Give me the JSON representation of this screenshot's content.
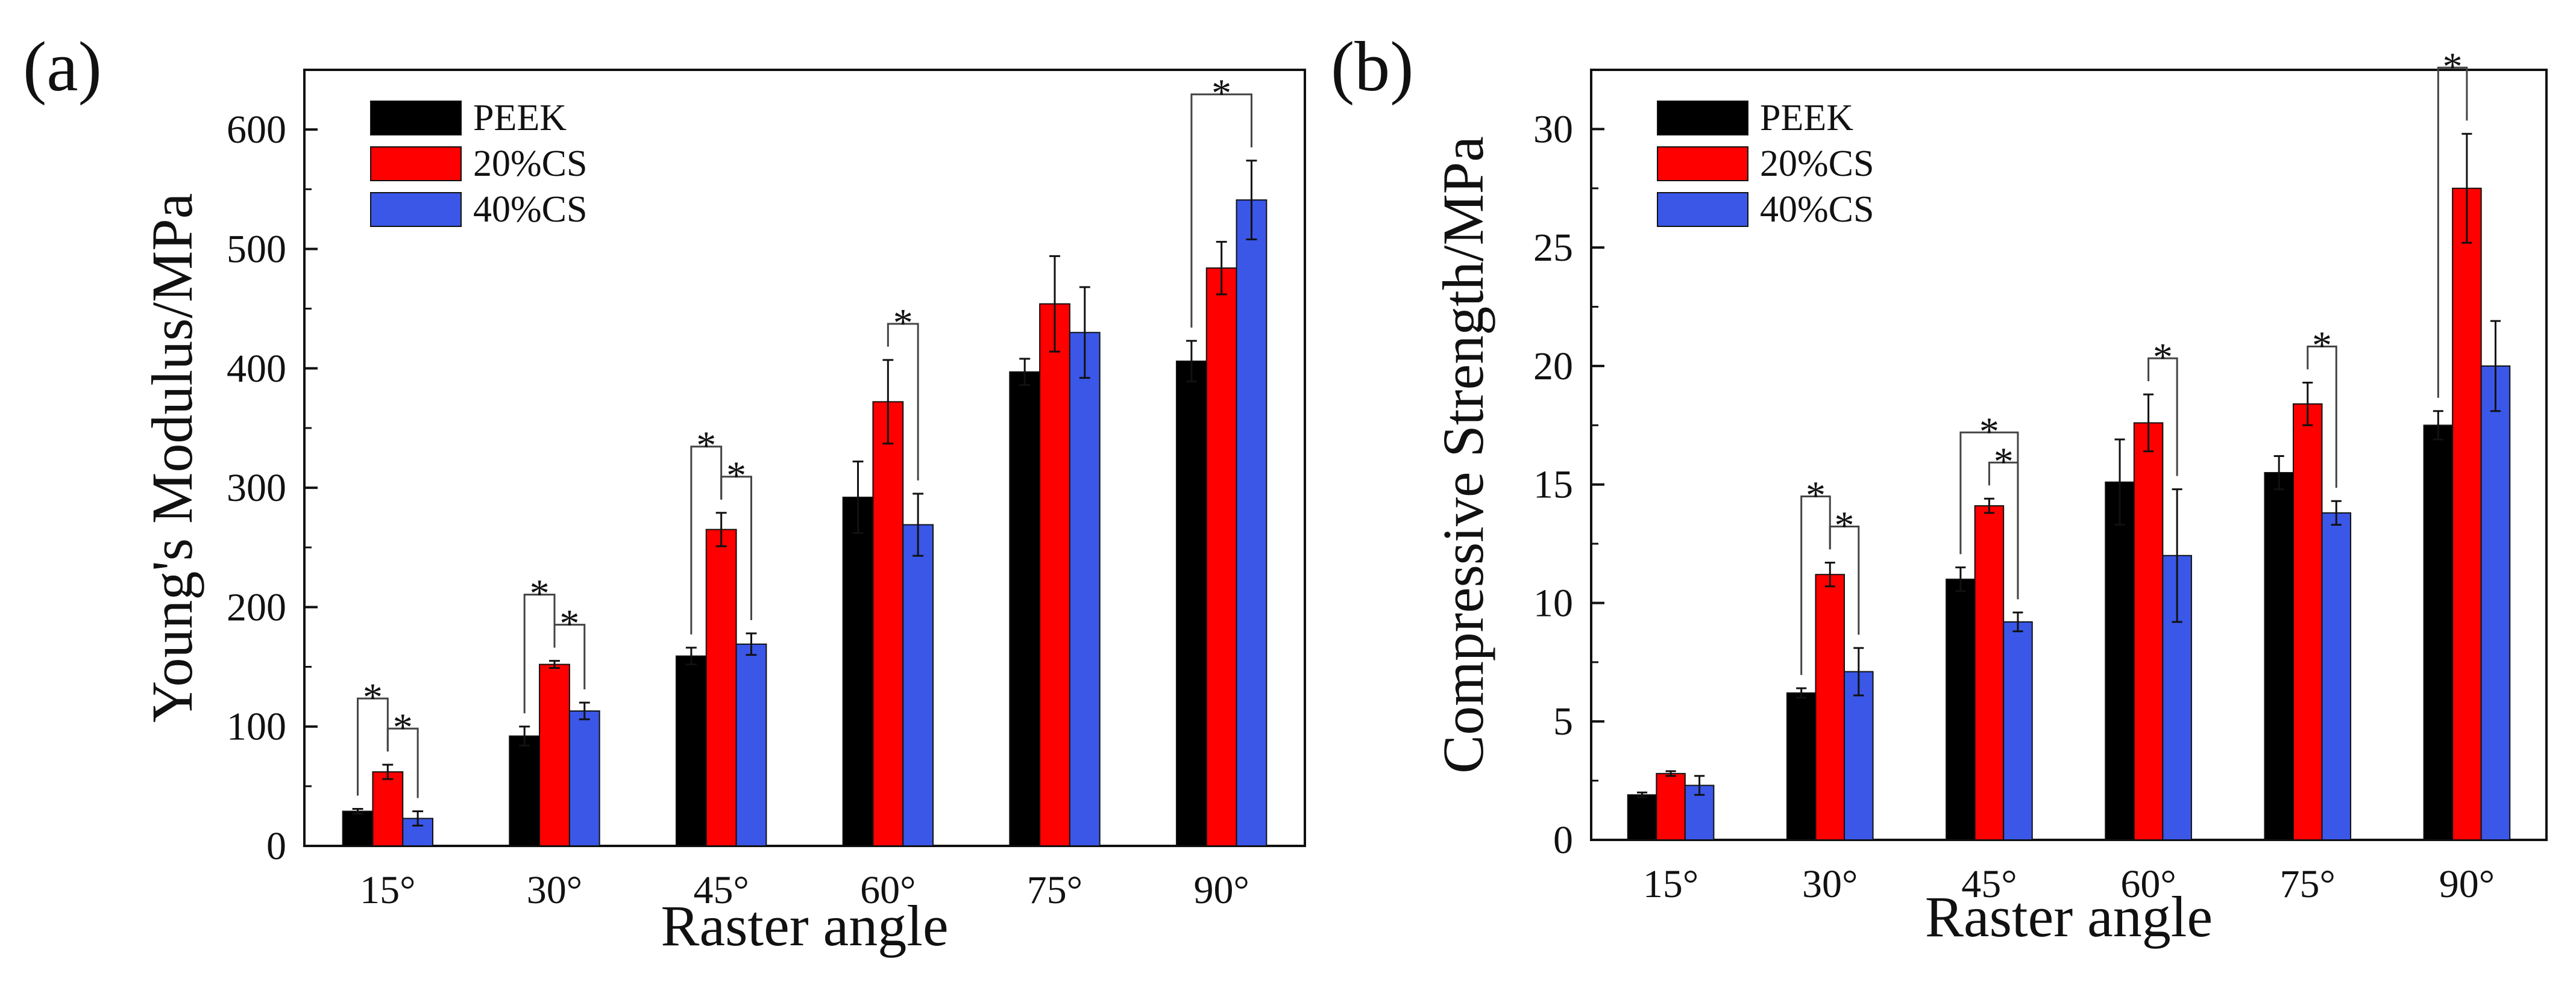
{
  "chart_data": [
    {
      "type": "bar",
      "panel_label": "(a)",
      "title": "",
      "xlabel": "Raster angle",
      "ylabel": "Young's Modulus/MPa",
      "categories": [
        "15°",
        "30°",
        "45°",
        "60°",
        "75°",
        "90°"
      ],
      "ylim": [
        0,
        650
      ],
      "yticks": [
        0,
        100,
        200,
        300,
        400,
        500,
        600
      ],
      "legend_position": "top-left",
      "series": [
        {
          "name": "PEEK",
          "color": "#000000",
          "values": [
            29,
            92,
            159,
            292,
            397,
            406
          ],
          "errors": [
            2,
            8,
            7,
            30,
            11,
            17
          ]
        },
        {
          "name": "20%CS",
          "color": "#ff0000",
          "values": [
            62,
            152,
            265,
            372,
            454,
            484
          ],
          "errors": [
            6,
            3,
            14,
            35,
            40,
            22
          ]
        },
        {
          "name": "40%CS",
          "color": "#3a57e8",
          "values": [
            23,
            113,
            169,
            269,
            430,
            541
          ],
          "errors": [
            6,
            7,
            9,
            26,
            38,
            33
          ]
        }
      ],
      "significance": [
        {
          "category": 0,
          "from": "PEEK",
          "to": "20%CS",
          "label": "*"
        },
        {
          "category": 0,
          "from": "20%CS",
          "to": "40%CS",
          "label": "*"
        },
        {
          "category": 1,
          "from": "PEEK",
          "to": "20%CS",
          "label": "*"
        },
        {
          "category": 1,
          "from": "20%CS",
          "to": "40%CS",
          "label": "*"
        },
        {
          "category": 2,
          "from": "PEEK",
          "to": "20%CS",
          "label": "*"
        },
        {
          "category": 2,
          "from": "20%CS",
          "to": "40%CS",
          "label": "*"
        },
        {
          "category": 3,
          "from": "20%CS",
          "to": "40%CS",
          "label": "*"
        },
        {
          "category": 5,
          "from": "PEEK",
          "to": "40%CS",
          "label": "*"
        }
      ]
    },
    {
      "type": "bar",
      "panel_label": "(b)",
      "title": "",
      "xlabel": "Raster angle",
      "ylabel": "Compressive Strength/MPa",
      "categories": [
        "15°",
        "30°",
        "45°",
        "60°",
        "75°",
        "90°"
      ],
      "ylim": [
        0,
        32.5
      ],
      "yticks": [
        0,
        5,
        10,
        15,
        20,
        25,
        30
      ],
      "legend_position": "top-left",
      "series": [
        {
          "name": "PEEK",
          "color": "#000000",
          "values": [
            1.9,
            6.2,
            11.0,
            15.1,
            15.5,
            17.5
          ],
          "errors": [
            0.1,
            0.2,
            0.5,
            1.8,
            0.7,
            0.6
          ]
        },
        {
          "name": "20%CS",
          "color": "#ff0000",
          "values": [
            2.8,
            11.2,
            14.1,
            17.6,
            18.4,
            27.5
          ],
          "errors": [
            0.1,
            0.5,
            0.3,
            1.2,
            0.9,
            2.3
          ]
        },
        {
          "name": "40%CS",
          "color": "#3a57e8",
          "values": [
            2.3,
            7.1,
            9.2,
            12.0,
            13.8,
            20.0
          ],
          "errors": [
            0.4,
            1.0,
            0.4,
            2.8,
            0.5,
            1.9
          ]
        }
      ],
      "significance": [
        {
          "category": 1,
          "from": "PEEK",
          "to": "20%CS",
          "label": "*"
        },
        {
          "category": 1,
          "from": "20%CS",
          "to": "40%CS",
          "label": "*"
        },
        {
          "category": 2,
          "from": "PEEK",
          "to": "40%CS",
          "label": "*"
        },
        {
          "category": 2,
          "from": "20%CS",
          "to": "40%CS",
          "label": "*"
        },
        {
          "category": 3,
          "from": "20%CS",
          "to": "40%CS",
          "label": "*"
        },
        {
          "category": 4,
          "from": "20%CS",
          "to": "40%CS",
          "label": "*"
        },
        {
          "category": 5,
          "from": "PEEK",
          "to": "20%CS",
          "label": "*"
        }
      ]
    }
  ]
}
